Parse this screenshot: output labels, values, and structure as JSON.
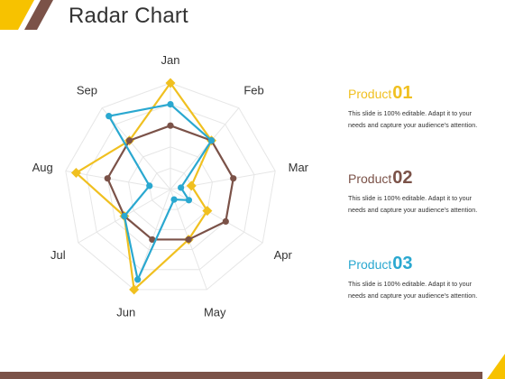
{
  "title": "Radar Chart",
  "colors": {
    "product_01": "#f0c020",
    "product_02": "#7b5248",
    "product_03": "#2aa8d0",
    "accent_yellow": "#f7c200",
    "accent_brown": "#7b5248",
    "grid": "#e6e6e6"
  },
  "products": [
    {
      "name": "Product",
      "number": "01",
      "color": "#f0c020",
      "desc_line1": "This slide is 100% editable. Adapt it to your",
      "desc_line2": "needs and capture your audience's attention."
    },
    {
      "name": "Product",
      "number": "02",
      "color": "#7b5248",
      "desc_line1": "This slide is 100% editable. Adapt it to your",
      "desc_line2": "needs and capture your audience's attention."
    },
    {
      "name": "Product",
      "number": "03",
      "color": "#2aa8d0",
      "desc_line1": "This slide is 100% editable. Adapt it to your",
      "desc_line2": "needs and capture your audience's attention."
    }
  ],
  "chart_data": {
    "type": "radar",
    "categories": [
      "Jan",
      "Feb",
      "Mar",
      "Apr",
      "May",
      "Jun",
      "Jul",
      "Aug",
      "Sep"
    ],
    "rmax": 10,
    "grid_rings": 5,
    "series": [
      {
        "name": "Product 01",
        "color": "#f0c020",
        "marker": "diamond",
        "values": [
          10,
          6,
          2,
          4,
          5,
          10,
          5,
          9,
          6
        ]
      },
      {
        "name": "Product 02",
        "color": "#7b5248",
        "marker": "circle",
        "values": [
          6,
          6,
          6,
          6,
          5,
          5,
          5,
          6,
          6
        ]
      },
      {
        "name": "Product 03",
        "color": "#2aa8d0",
        "marker": "circle",
        "values": [
          8,
          6,
          1,
          2,
          1,
          9,
          5,
          2,
          9
        ]
      }
    ]
  }
}
